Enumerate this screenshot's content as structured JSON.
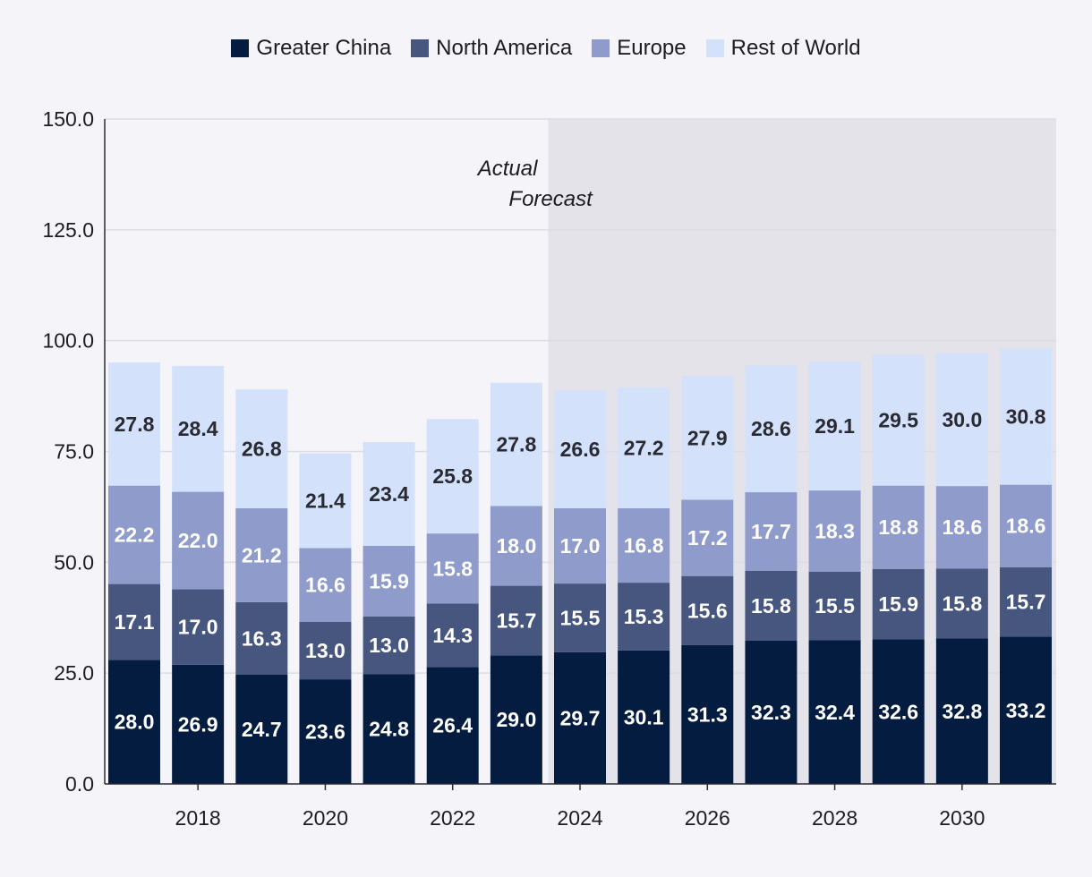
{
  "chart_data": {
    "type": "bar",
    "stacked": true,
    "title": "",
    "xlabel": "",
    "ylabel": "",
    "ylim": [
      0,
      150
    ],
    "yticks": [
      "0.0",
      "25.0",
      "50.0",
      "75.0",
      "100.0",
      "125.0",
      "150.0"
    ],
    "grid": true,
    "legend_position": "top-center",
    "categories": [
      2017,
      2018,
      2019,
      2020,
      2021,
      2022,
      2023,
      2024,
      2025,
      2026,
      2027,
      2028,
      2029,
      2030,
      2031
    ],
    "xtick_labels": [
      "2018",
      "2020",
      "2022",
      "2024",
      "2026",
      "2028",
      "2030"
    ],
    "forecast_start": 2024,
    "annotations": {
      "actual": "Actual",
      "forecast": "Forecast"
    },
    "series": [
      {
        "name": "Greater China",
        "color": "#041c3f",
        "values": [
          28.0,
          26.9,
          24.7,
          23.6,
          24.8,
          26.4,
          29.0,
          29.7,
          30.1,
          31.3,
          32.3,
          32.4,
          32.6,
          32.8,
          33.2
        ]
      },
      {
        "name": "North America",
        "color": "#47567f",
        "values": [
          17.1,
          17.0,
          16.3,
          13.0,
          13.0,
          14.3,
          15.7,
          15.5,
          15.3,
          15.6,
          15.8,
          15.5,
          15.9,
          15.8,
          15.7
        ]
      },
      {
        "name": "Europe",
        "color": "#8e9bcb",
        "values": [
          22.2,
          22.0,
          21.2,
          16.6,
          15.9,
          15.8,
          18.0,
          17.0,
          16.8,
          17.2,
          17.7,
          18.3,
          18.8,
          18.6,
          18.6
        ]
      },
      {
        "name": "Rest of World",
        "color": "#d3e1fb",
        "values": [
          27.8,
          28.4,
          26.8,
          21.4,
          23.4,
          25.8,
          27.8,
          26.6,
          27.2,
          27.9,
          28.6,
          29.1,
          29.5,
          30.0,
          30.8
        ]
      }
    ]
  }
}
